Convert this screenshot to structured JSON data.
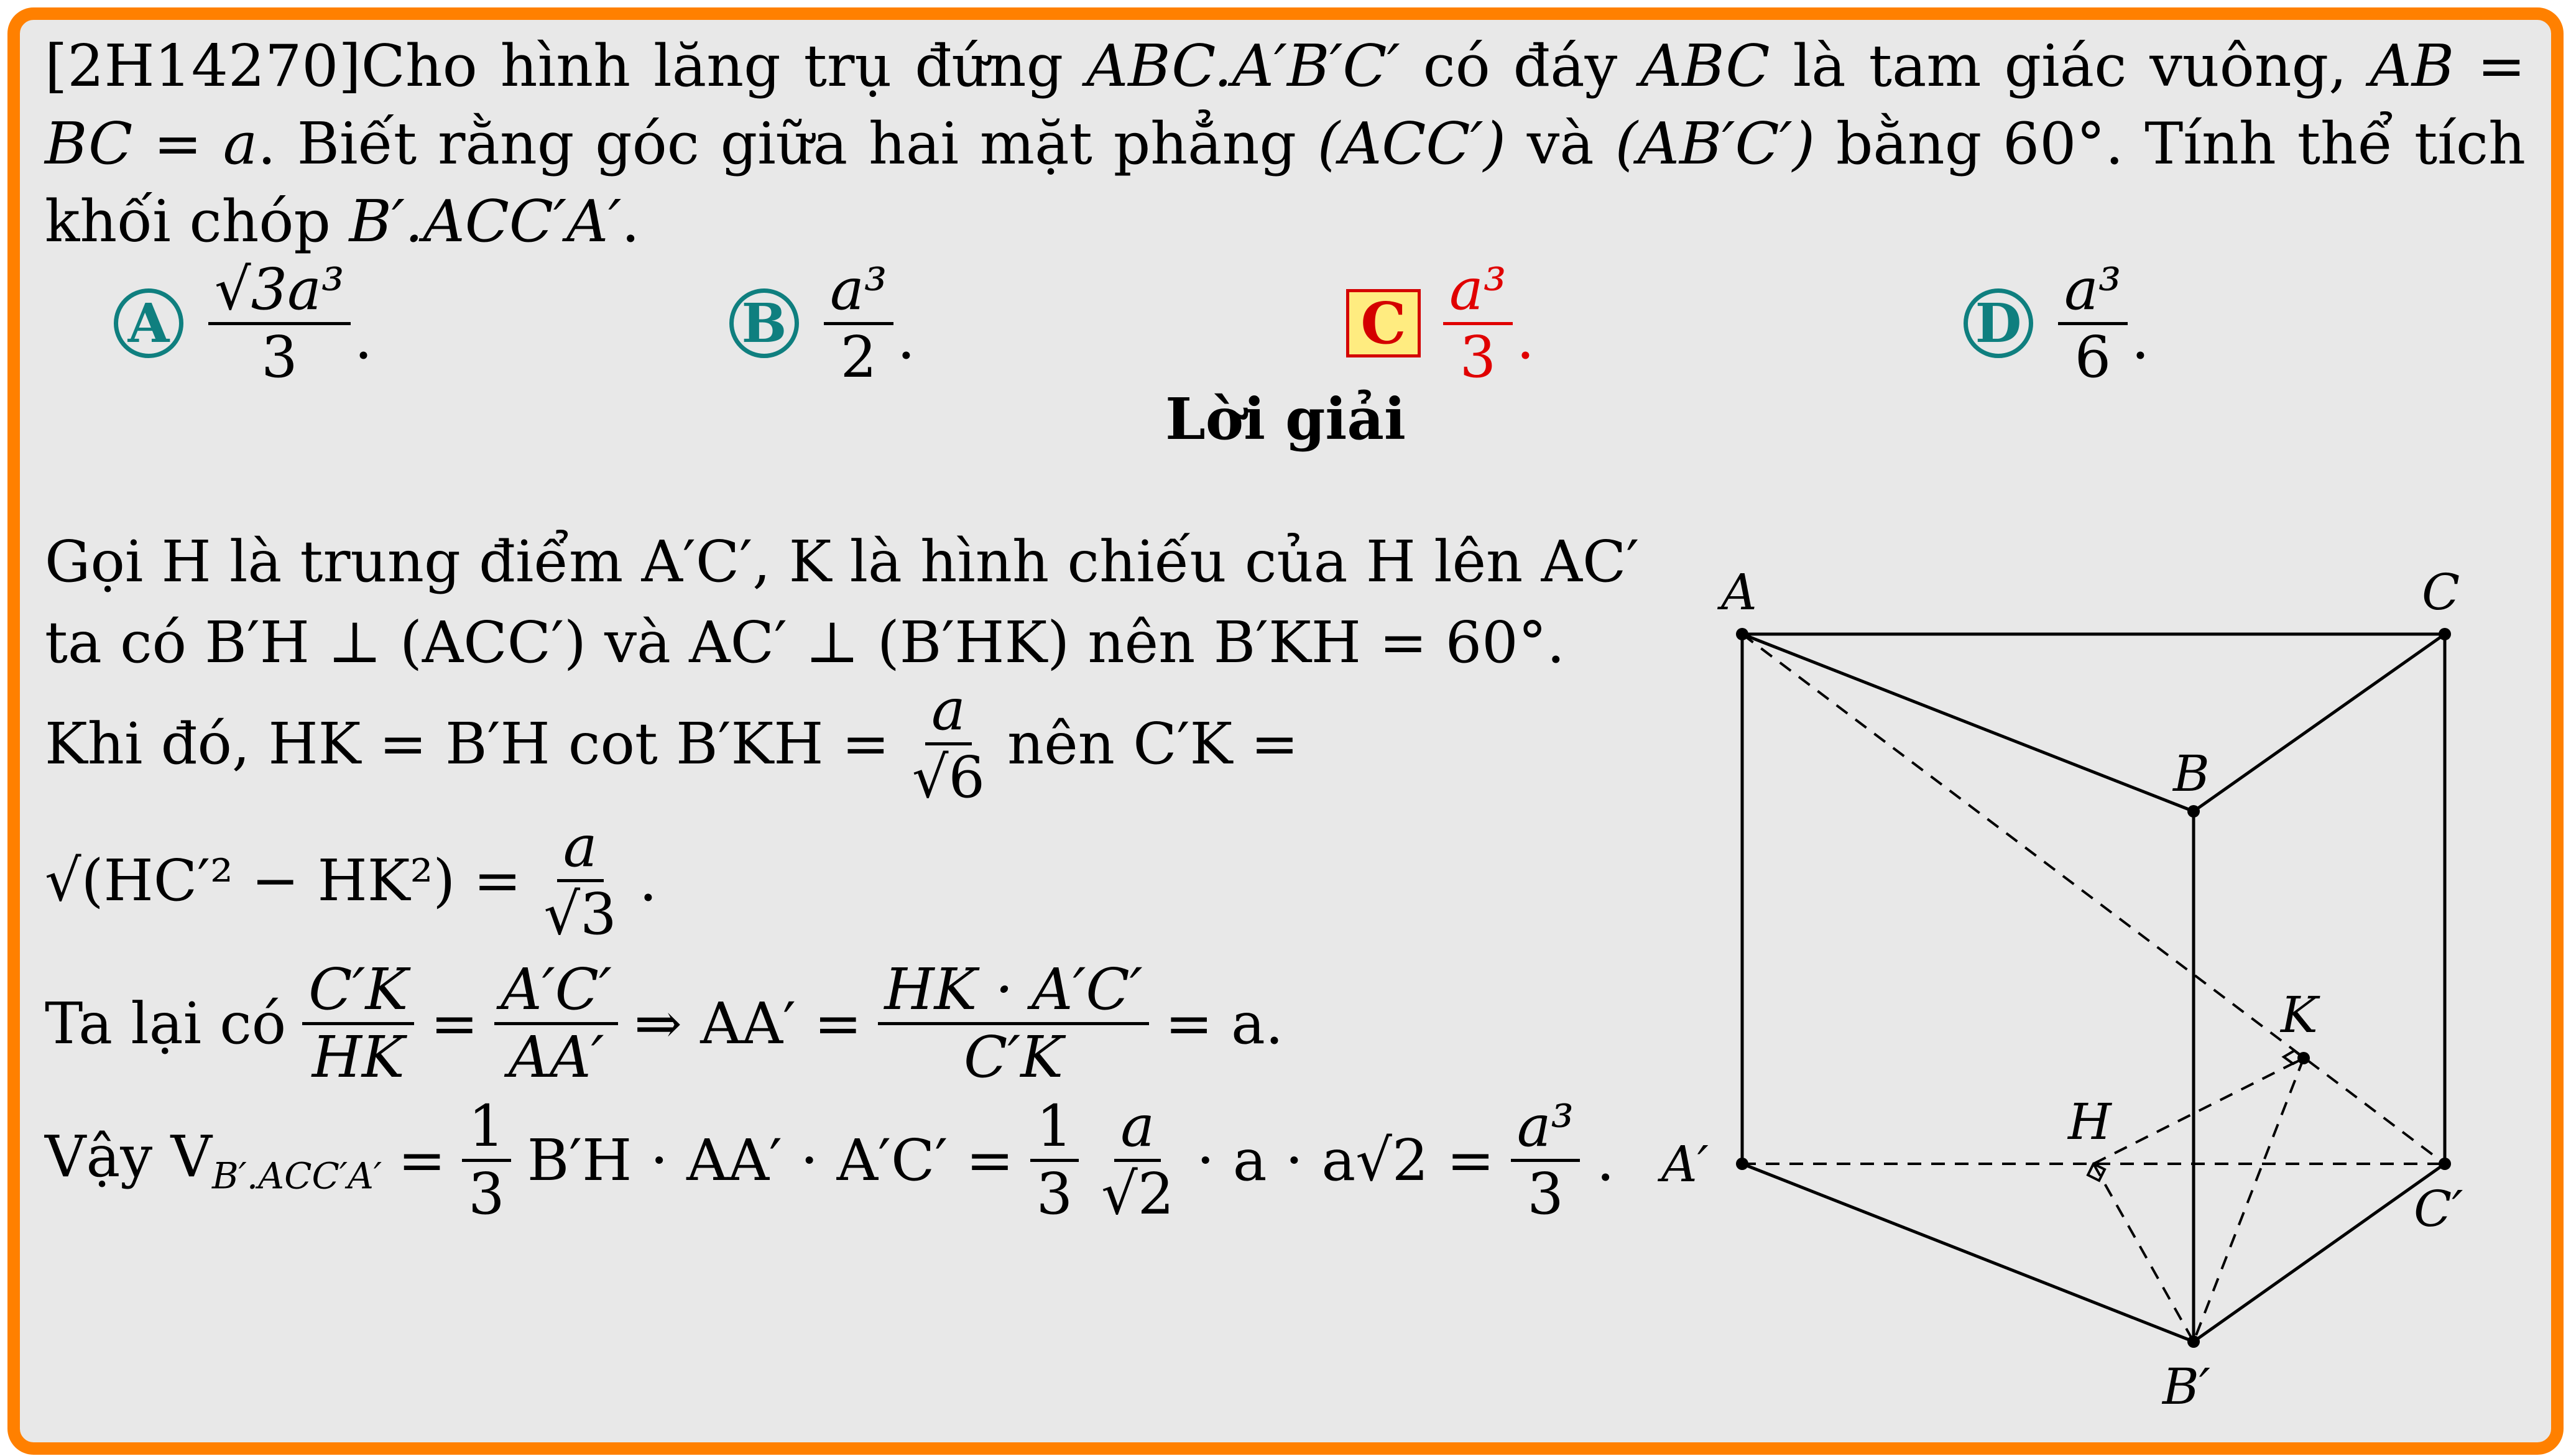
{
  "problem": {
    "id": "[2H14270]",
    "text_1": "Cho hình lăng trụ đứng ",
    "prism": "ABC.A′B′C′",
    "text_2": " có đáy ",
    "base": "ABC",
    "text_3": " là tam giác vuông, ",
    "equality": "AB = BC = a",
    "text_4": ". Biết rằng góc giữa hai mặt phẳng ",
    "plane_1": "(ACC′)",
    "text_5": " và ",
    "plane_2": "(AB′C′)",
    "text_6": " bằng 60°. Tính thể tích khối chóp ",
    "pyramid": "B′.ACC′A′",
    "text_7": "."
  },
  "options": [
    {
      "letter": "A",
      "numerator": "√3a³",
      "denominator": "3",
      "correct": false
    },
    {
      "letter": "B",
      "numerator": "a³",
      "denominator": "2",
      "correct": false
    },
    {
      "letter": "C",
      "numerator": "a³",
      "denominator": "3",
      "correct": true
    },
    {
      "letter": "D",
      "numerator": "a³",
      "denominator": "6",
      "correct": false
    }
  ],
  "solution_heading": "Lời giải",
  "solution": {
    "line1": "Gọi H là trung điểm A′C′, K là hình chiếu của H lên AC′",
    "line2": "ta có B′H ⊥ (ACC′) và AC′ ⊥ (B′HK) nên B′KH = 60°.",
    "line3_a": "Khi đó, HK = B′H cot B′KH =",
    "line3_frac_num": "a",
    "line3_frac_den": "√6",
    "line3_b": "nên C′K =",
    "line4_a": "√(HC′² − HK²) =",
    "line4_frac_num": "a",
    "line4_frac_den": "√3",
    "line4_b": ".",
    "line5_a": "Ta lại có",
    "line5_f1_num": "C′K",
    "line5_f1_den": "HK",
    "line5_eq1": "=",
    "line5_f2_num": "A′C′",
    "line5_f2_den": "AA′",
    "line5_mid": "⇒ AA′ =",
    "line5_f3_num": "HK · A′C′",
    "line5_f3_den": "C′K",
    "line5_end": "= a.",
    "line6_a": "Vậy V",
    "line6_sub": "B′.ACC′A′",
    "line6_b": "=",
    "line6_f1_num": "1",
    "line6_f1_den": "3",
    "line6_c": "B′H · AA′ · A′C′ =",
    "line6_f2_num": "1",
    "line6_f2_den": "3",
    "line6_f3_num": "a",
    "line6_f3_den": "√2",
    "line6_d": "· a · a√2 =",
    "line6_f4_num": "a³",
    "line6_f4_den": "3",
    "line6_e": "."
  },
  "figure": {
    "labels": {
      "A": "A",
      "B": "B",
      "C": "C",
      "A1": "A′",
      "B1": "B′",
      "C1": "C′",
      "H": "H",
      "K": "K"
    }
  },
  "colors": {
    "border": "#ff8000",
    "badge": "#0f7f7f",
    "correct": "#e00000",
    "correct_bg": "#ffec80"
  }
}
